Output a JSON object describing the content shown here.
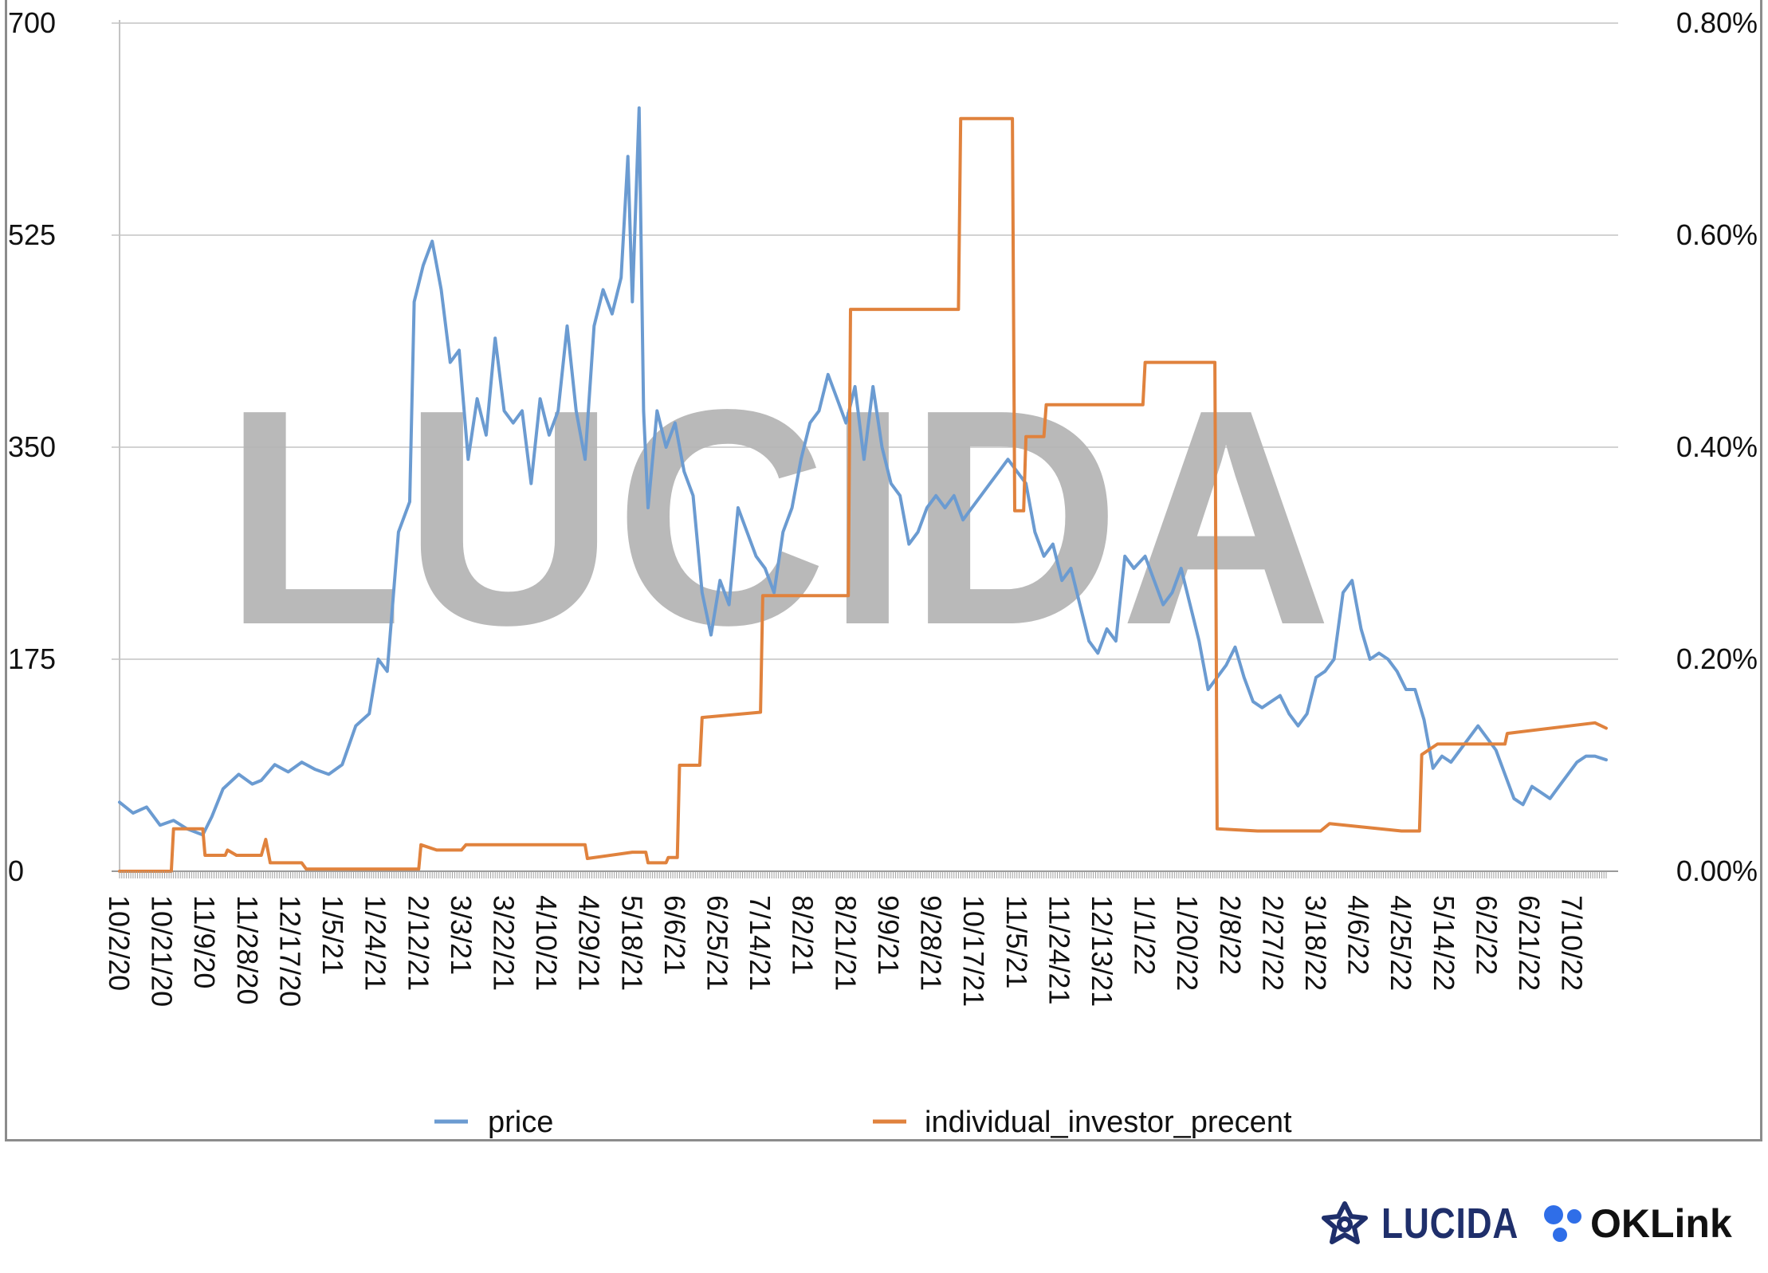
{
  "chart_data": {
    "type": "line",
    "title": "",
    "watermark": "LUCIDA",
    "x_tick_labels": [
      "10/2/20",
      "10/21/20",
      "11/9/20",
      "11/28/20",
      "12/17/20",
      "1/5/21",
      "1/24/21",
      "2/12/21",
      "3/3/21",
      "3/22/21",
      "4/10/21",
      "4/29/21",
      "5/18/21",
      "6/6/21",
      "6/25/21",
      "7/14/21",
      "8/2/21",
      "8/21/21",
      "9/9/21",
      "9/28/21",
      "10/17/21",
      "11/5/21",
      "11/24/21",
      "12/13/21",
      "1/1/22",
      "1/20/22",
      "2/8/22",
      "2/27/22",
      "3/18/22",
      "4/6/22",
      "4/25/22",
      "5/14/22",
      "6/2/22",
      "6/21/22",
      "7/10/22"
    ],
    "x_range": [
      "2020-10-02",
      "2022-07-25"
    ],
    "y_left": {
      "min": 0,
      "max": 700,
      "ticks": [
        "0",
        "175",
        "350",
        "525",
        "700"
      ]
    },
    "y_right": {
      "min": 0,
      "max": 0.008,
      "ticks": [
        "0.00%",
        "0.20%",
        "0.40%",
        "0.60%",
        "0.80%"
      ]
    },
    "grid": "horizontal",
    "legend_position": "bottom",
    "series": [
      {
        "name": "price",
        "color": "#6b9bd1",
        "axis": "left",
        "points": [
          [
            "2020-10-02",
            57
          ],
          [
            "2020-10-08",
            48
          ],
          [
            "2020-10-14",
            53
          ],
          [
            "2020-10-20",
            38
          ],
          [
            "2020-10-26",
            42
          ],
          [
            "2020-11-01",
            35
          ],
          [
            "2020-11-08",
            30
          ],
          [
            "2020-11-12",
            45
          ],
          [
            "2020-11-17",
            68
          ],
          [
            "2020-11-24",
            80
          ],
          [
            "2020-11-30",
            72
          ],
          [
            "2020-12-04",
            75
          ],
          [
            "2020-12-10",
            88
          ],
          [
            "2020-12-16",
            82
          ],
          [
            "2020-12-22",
            90
          ],
          [
            "2020-12-28",
            84
          ],
          [
            "2021-01-03",
            80
          ],
          [
            "2021-01-09",
            88
          ],
          [
            "2021-01-15",
            120
          ],
          [
            "2021-01-21",
            130
          ],
          [
            "2021-01-25",
            175
          ],
          [
            "2021-01-29",
            165
          ],
          [
            "2021-02-03",
            280
          ],
          [
            "2021-02-08",
            305
          ],
          [
            "2021-02-10",
            470
          ],
          [
            "2021-02-14",
            500
          ],
          [
            "2021-02-18",
            520
          ],
          [
            "2021-02-22",
            480
          ],
          [
            "2021-02-26",
            420
          ],
          [
            "2021-03-02",
            430
          ],
          [
            "2021-03-06",
            340
          ],
          [
            "2021-03-10",
            390
          ],
          [
            "2021-03-14",
            360
          ],
          [
            "2021-03-18",
            440
          ],
          [
            "2021-03-22",
            380
          ],
          [
            "2021-03-26",
            370
          ],
          [
            "2021-03-30",
            380
          ],
          [
            "2021-04-03",
            320
          ],
          [
            "2021-04-07",
            390
          ],
          [
            "2021-04-11",
            360
          ],
          [
            "2021-04-15",
            380
          ],
          [
            "2021-04-19",
            450
          ],
          [
            "2021-04-23",
            380
          ],
          [
            "2021-04-27",
            340
          ],
          [
            "2021-05-01",
            450
          ],
          [
            "2021-05-05",
            480
          ],
          [
            "2021-05-09",
            460
          ],
          [
            "2021-05-13",
            490
          ],
          [
            "2021-05-16",
            590
          ],
          [
            "2021-05-18",
            470
          ],
          [
            "2021-05-21",
            630
          ],
          [
            "2021-05-23",
            380
          ],
          [
            "2021-05-25",
            300
          ],
          [
            "2021-05-29",
            380
          ],
          [
            "2021-06-02",
            350
          ],
          [
            "2021-06-06",
            370
          ],
          [
            "2021-06-10",
            330
          ],
          [
            "2021-06-14",
            310
          ],
          [
            "2021-06-18",
            230
          ],
          [
            "2021-06-22",
            195
          ],
          [
            "2021-06-26",
            240
          ],
          [
            "2021-06-30",
            220
          ],
          [
            "2021-07-04",
            300
          ],
          [
            "2021-07-08",
            280
          ],
          [
            "2021-07-12",
            260
          ],
          [
            "2021-07-16",
            250
          ],
          [
            "2021-07-20",
            230
          ],
          [
            "2021-07-24",
            280
          ],
          [
            "2021-07-28",
            300
          ],
          [
            "2021-08-01",
            340
          ],
          [
            "2021-08-05",
            370
          ],
          [
            "2021-08-09",
            380
          ],
          [
            "2021-08-13",
            410
          ],
          [
            "2021-08-17",
            390
          ],
          [
            "2021-08-21",
            370
          ],
          [
            "2021-08-25",
            400
          ],
          [
            "2021-08-29",
            340
          ],
          [
            "2021-09-02",
            400
          ],
          [
            "2021-09-06",
            350
          ],
          [
            "2021-09-10",
            320
          ],
          [
            "2021-09-14",
            310
          ],
          [
            "2021-09-18",
            270
          ],
          [
            "2021-09-22",
            280
          ],
          [
            "2021-09-26",
            300
          ],
          [
            "2021-09-30",
            310
          ],
          [
            "2021-10-04",
            300
          ],
          [
            "2021-10-08",
            310
          ],
          [
            "2021-10-12",
            290
          ],
          [
            "2021-10-16",
            300
          ],
          [
            "2021-10-20",
            310
          ],
          [
            "2021-10-24",
            320
          ],
          [
            "2021-10-28",
            330
          ],
          [
            "2021-11-01",
            340
          ],
          [
            "2021-11-05",
            330
          ],
          [
            "2021-11-09",
            320
          ],
          [
            "2021-11-13",
            280
          ],
          [
            "2021-11-17",
            260
          ],
          [
            "2021-11-21",
            270
          ],
          [
            "2021-11-25",
            240
          ],
          [
            "2021-11-29",
            250
          ],
          [
            "2021-12-03",
            220
          ],
          [
            "2021-12-07",
            190
          ],
          [
            "2021-12-11",
            180
          ],
          [
            "2021-12-15",
            200
          ],
          [
            "2021-12-19",
            190
          ],
          [
            "2021-12-23",
            260
          ],
          [
            "2021-12-27",
            250
          ],
          [
            "2022-01-01",
            260
          ],
          [
            "2022-01-05",
            240
          ],
          [
            "2022-01-09",
            220
          ],
          [
            "2022-01-13",
            230
          ],
          [
            "2022-01-17",
            250
          ],
          [
            "2022-01-21",
            220
          ],
          [
            "2022-01-25",
            190
          ],
          [
            "2022-01-29",
            150
          ],
          [
            "2022-02-02",
            160
          ],
          [
            "2022-02-06",
            170
          ],
          [
            "2022-02-10",
            185
          ],
          [
            "2022-02-14",
            160
          ],
          [
            "2022-02-18",
            140
          ],
          [
            "2022-02-22",
            135
          ],
          [
            "2022-02-26",
            140
          ],
          [
            "2022-03-02",
            145
          ],
          [
            "2022-03-06",
            130
          ],
          [
            "2022-03-10",
            120
          ],
          [
            "2022-03-14",
            130
          ],
          [
            "2022-03-18",
            160
          ],
          [
            "2022-03-22",
            165
          ],
          [
            "2022-03-26",
            175
          ],
          [
            "2022-03-30",
            230
          ],
          [
            "2022-04-03",
            240
          ],
          [
            "2022-04-07",
            200
          ],
          [
            "2022-04-11",
            175
          ],
          [
            "2022-04-15",
            180
          ],
          [
            "2022-04-19",
            175
          ],
          [
            "2022-04-23",
            165
          ],
          [
            "2022-04-27",
            150
          ],
          [
            "2022-05-01",
            150
          ],
          [
            "2022-05-05",
            125
          ],
          [
            "2022-05-09",
            85
          ],
          [
            "2022-05-13",
            95
          ],
          [
            "2022-05-17",
            90
          ],
          [
            "2022-05-21",
            100
          ],
          [
            "2022-05-25",
            110
          ],
          [
            "2022-05-29",
            120
          ],
          [
            "2022-06-02",
            110
          ],
          [
            "2022-06-06",
            100
          ],
          [
            "2022-06-10",
            80
          ],
          [
            "2022-06-14",
            60
          ],
          [
            "2022-06-18",
            55
          ],
          [
            "2022-06-22",
            70
          ],
          [
            "2022-06-26",
            65
          ],
          [
            "2022-06-30",
            60
          ],
          [
            "2022-07-04",
            70
          ],
          [
            "2022-07-08",
            80
          ],
          [
            "2022-07-12",
            90
          ],
          [
            "2022-07-16",
            95
          ],
          [
            "2022-07-20",
            95
          ],
          [
            "2022-07-25",
            92
          ]
        ]
      },
      {
        "name": "individual_investor_precent",
        "color": "#e0823d",
        "axis": "right",
        "points": [
          [
            "2020-10-02",
            0.0
          ],
          [
            "2020-10-25",
            0.0
          ],
          [
            "2020-10-26",
            0.0004
          ],
          [
            "2020-11-08",
            0.0004
          ],
          [
            "2020-11-09",
            0.00015
          ],
          [
            "2020-11-18",
            0.00015
          ],
          [
            "2020-11-19",
            0.0002
          ],
          [
            "2020-11-23",
            0.00015
          ],
          [
            "2020-12-04",
            0.00015
          ],
          [
            "2020-12-06",
            0.0003
          ],
          [
            "2020-12-08",
            8e-05
          ],
          [
            "2020-12-22",
            8e-05
          ],
          [
            "2020-12-24",
            2e-05
          ],
          [
            "2021-02-12",
            2e-05
          ],
          [
            "2021-02-13",
            0.00025
          ],
          [
            "2021-02-20",
            0.0002
          ],
          [
            "2021-03-03",
            0.0002
          ],
          [
            "2021-03-05",
            0.00025
          ],
          [
            "2021-04-27",
            0.00025
          ],
          [
            "2021-04-28",
            0.00012
          ],
          [
            "2021-05-18",
            0.00018
          ],
          [
            "2021-05-24",
            0.00018
          ],
          [
            "2021-05-25",
            8e-05
          ],
          [
            "2021-06-02",
            8e-05
          ],
          [
            "2021-06-03",
            0.00013
          ],
          [
            "2021-06-07",
            0.00013
          ],
          [
            "2021-06-08",
            0.001
          ],
          [
            "2021-06-17",
            0.001
          ],
          [
            "2021-06-18",
            0.00145
          ],
          [
            "2021-07-14",
            0.0015
          ],
          [
            "2021-07-15",
            0.0026
          ],
          [
            "2021-08-22",
            0.0026
          ],
          [
            "2021-08-23",
            0.0053
          ],
          [
            "2021-10-10",
            0.0053
          ],
          [
            "2021-10-11",
            0.0071
          ],
          [
            "2021-11-03",
            0.0071
          ],
          [
            "2021-11-04",
            0.0034
          ],
          [
            "2021-11-08",
            0.0034
          ],
          [
            "2021-11-09",
            0.0041
          ],
          [
            "2021-11-17",
            0.0041
          ],
          [
            "2021-11-18",
            0.0044
          ],
          [
            "2021-12-31",
            0.0044
          ],
          [
            "2022-01-01",
            0.0048
          ],
          [
            "2022-02-01",
            0.0048
          ],
          [
            "2022-02-02",
            0.0004
          ],
          [
            "2022-02-20",
            0.00038
          ],
          [
            "2022-03-20",
            0.00038
          ],
          [
            "2022-03-24",
            0.00045
          ],
          [
            "2022-04-25",
            0.00038
          ],
          [
            "2022-05-03",
            0.00038
          ],
          [
            "2022-05-04",
            0.0011
          ],
          [
            "2022-05-11",
            0.0012
          ],
          [
            "2022-06-10",
            0.0012
          ],
          [
            "2022-06-11",
            0.0013
          ],
          [
            "2022-07-20",
            0.0014
          ],
          [
            "2022-07-25",
            0.00135
          ]
        ]
      }
    ]
  },
  "logos": {
    "lucida": "LUCIDA",
    "oklink": "OKLink"
  }
}
